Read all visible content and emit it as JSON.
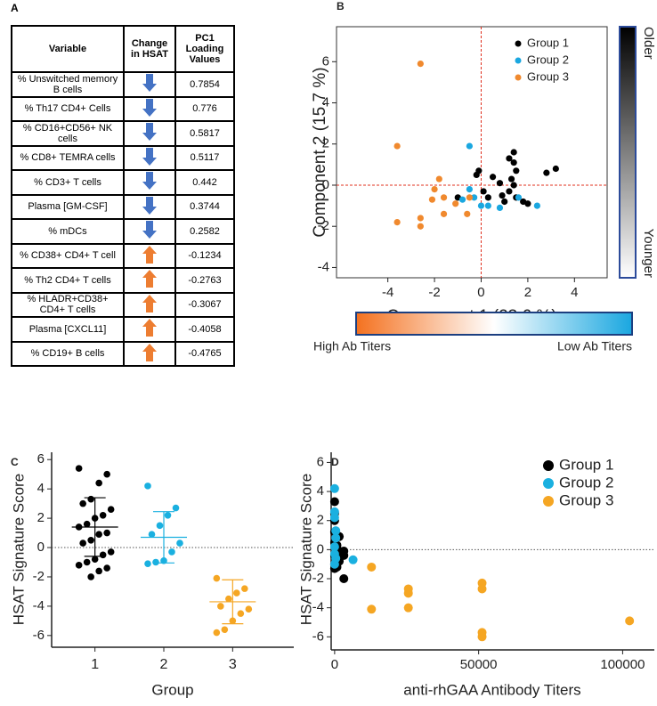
{
  "table": {
    "panel": "A",
    "columns": [
      "Variable",
      "Change in HSAT",
      "PC1 Loading Values"
    ],
    "rows": [
      {
        "variable": "% Unswitched memory B cells",
        "change": "down",
        "loading": 0.7854
      },
      {
        "variable": "% Th17 CD4+ Cells",
        "change": "down",
        "loading": 0.776
      },
      {
        "variable": "% CD16+CD56+ NK cells",
        "change": "down",
        "loading": 0.5817
      },
      {
        "variable": "% CD8+ TEMRA cells",
        "change": "down",
        "loading": 0.5117
      },
      {
        "variable": "% CD3+ T cells",
        "change": "down",
        "loading": 0.442
      },
      {
        "variable": "Plasma [GM-CSF]",
        "change": "down",
        "loading": 0.3744
      },
      {
        "variable": "% mDCs",
        "change": "down",
        "loading": 0.2582
      },
      {
        "variable": "% CD38+ CD4+ T cell",
        "change": "up",
        "loading": -0.1234
      },
      {
        "variable": "% Th2 CD4+ T cells",
        "change": "up",
        "loading": -0.2763
      },
      {
        "variable": "% HLADR+CD38+ CD4+ T cells",
        "change": "up",
        "loading": -0.3067
      },
      {
        "variable": "Plasma [CXCL11]",
        "change": "up",
        "loading": -0.4058
      },
      {
        "variable": "% CD19+ B cells",
        "change": "up",
        "loading": -0.4765
      }
    ],
    "arrow_colors": {
      "down": "#4472c4",
      "up": "#ed7d31"
    }
  },
  "chart_data": [
    {
      "type": "scatter",
      "panel": "B",
      "frame": "box",
      "zero_lines": "#e0301e",
      "x_label": "Component 1  (23.6 %)",
      "y_label": "Component 2  (15.7 %)",
      "xlim": [
        -6.2,
        5.4
      ],
      "ylim": [
        -4.5,
        7.7
      ],
      "xticks": [
        -4,
        -2,
        0,
        2,
        4
      ],
      "yticks": [
        -4,
        -2,
        0,
        2,
        4,
        6
      ],
      "legend": "upper right",
      "series": [
        {
          "name": "Group 1",
          "color": "#000000",
          "x": [
            -0.2,
            -0.1,
            0.1,
            0.5,
            0.8,
            0.3,
            -1.0,
            1.2,
            1.4,
            1.4,
            1.5,
            1.2,
            1.3,
            1.5,
            1.8,
            2.0,
            2.8,
            3.2,
            0.9,
            1.0,
            1.4
          ],
          "y": [
            0.5,
            0.7,
            -0.3,
            0.4,
            0.1,
            -0.6,
            -0.6,
            1.3,
            1.1,
            1.6,
            0.7,
            -0.3,
            0.3,
            -0.6,
            -0.8,
            -0.9,
            0.6,
            0.8,
            -0.5,
            -0.8,
            0.0
          ]
        },
        {
          "name": "Group 2",
          "color": "#1aa7e0",
          "x": [
            -0.5,
            -0.5,
            -0.3,
            -0.8,
            0.0,
            0.3,
            0.8,
            1.6,
            2.4
          ],
          "y": [
            1.9,
            -0.2,
            -0.6,
            -0.7,
            -1.0,
            -1.0,
            -1.1,
            -0.6,
            -1.0
          ]
        },
        {
          "name": "Group 3",
          "color": "#f0892e",
          "x": [
            -2.6,
            -3.6,
            -1.8,
            -2.0,
            -1.6,
            -2.1,
            -0.5,
            -1.1,
            -2.6,
            -3.6,
            -2.6,
            -1.6,
            -0.6
          ],
          "y": [
            5.9,
            1.9,
            0.3,
            -0.2,
            -0.6,
            -0.7,
            -0.6,
            -0.9,
            -1.6,
            -1.8,
            -2.0,
            -1.4,
            -1.4
          ]
        }
      ],
      "colorbars": [
        {
          "orientation": "vertical",
          "colors": [
            "#000000",
            "#ffffff"
          ],
          "border": "#2c4b9a",
          "labels": [
            "Older",
            "Younger"
          ]
        },
        {
          "orientation": "horizontal",
          "colors": [
            "#f4711f",
            "#ffffff",
            "#1aa7e0"
          ],
          "border": "#1c3f80",
          "labels": [
            "High Ab Titers",
            "Low Ab Titers"
          ]
        }
      ]
    },
    {
      "type": "dot",
      "panel": "C",
      "frame": "axes",
      "zero_line": "#555555",
      "x_label": "Group",
      "y_label": "HSAT Signature Score",
      "categories": [
        "1",
        "2",
        "3"
      ],
      "ylim": [
        -6.8,
        6.5
      ],
      "yticks": [
        -6,
        -4,
        -2,
        0,
        2,
        4,
        6
      ],
      "colors": [
        "#000000",
        "#1ab0e0",
        "#f5a623"
      ],
      "points": [
        [
          5.4,
          5.0,
          4.4,
          3.3,
          3.0,
          2.6,
          2.2,
          2.0,
          1.6,
          1.4,
          1.0,
          0.9,
          0.5,
          0.3,
          -0.3,
          -0.5,
          -0.8,
          -1.0,
          -1.2,
          -1.4,
          -1.6,
          -2.0
        ],
        [
          4.2,
          2.7,
          2.2,
          1.5,
          0.9,
          0.3,
          -0.3,
          -0.9,
          -1.0,
          -1.1
        ],
        [
          -2.1,
          -2.8,
          -3.1,
          -3.5,
          -4.0,
          -4.2,
          -4.5,
          -5.0,
          -5.6,
          -5.8
        ]
      ],
      "means": [
        1.4,
        0.7,
        -3.7
      ],
      "sd": [
        2.0,
        1.75,
        1.5
      ]
    },
    {
      "type": "scatter",
      "panel": "D",
      "frame": "axes",
      "zero_line": "#555555",
      "x_label": "anti-rhGAA Antibody Titers",
      "y_label": "HSAT Signature Score",
      "xlim": [
        -1200,
        111000
      ],
      "ylim": [
        -6.9,
        6.7
      ],
      "xticks": [
        0,
        50000,
        100000
      ],
      "yticks": [
        -6,
        -4,
        -2,
        0,
        2,
        4,
        6
      ],
      "legend": "upper right",
      "series": [
        {
          "name": "Group 1",
          "color": "#000000",
          "x": [
            0,
            0,
            0,
            0,
            0,
            0,
            800,
            800,
            800,
            1600,
            1600,
            3200,
            3200,
            3200,
            0,
            0,
            1600,
            800
          ],
          "y": [
            3.3,
            2.5,
            2.0,
            1.2,
            0.5,
            -0.4,
            1.0,
            0.3,
            -0.5,
            0.9,
            -0.1,
            -0.1,
            -0.4,
            -2.0,
            -1.0,
            -1.3,
            -0.8,
            -1.2
          ]
        },
        {
          "name": "Group 2",
          "color": "#1ab0e0",
          "x": [
            0,
            0,
            0,
            400,
            400,
            0,
            0,
            400,
            0,
            6400
          ],
          "y": [
            4.2,
            2.6,
            2.2,
            1.3,
            0.8,
            0.2,
            -0.3,
            -0.6,
            -1.0,
            -0.7
          ]
        },
        {
          "name": "Group 3",
          "color": "#f5a623",
          "x": [
            12800,
            12800,
            25600,
            25600,
            25600,
            51200,
            51200,
            51200,
            51200,
            102400
          ],
          "y": [
            -1.2,
            -4.1,
            -2.7,
            -3.0,
            -4.0,
            -2.3,
            -2.7,
            -5.7,
            -6.0,
            -4.9
          ]
        }
      ]
    }
  ]
}
